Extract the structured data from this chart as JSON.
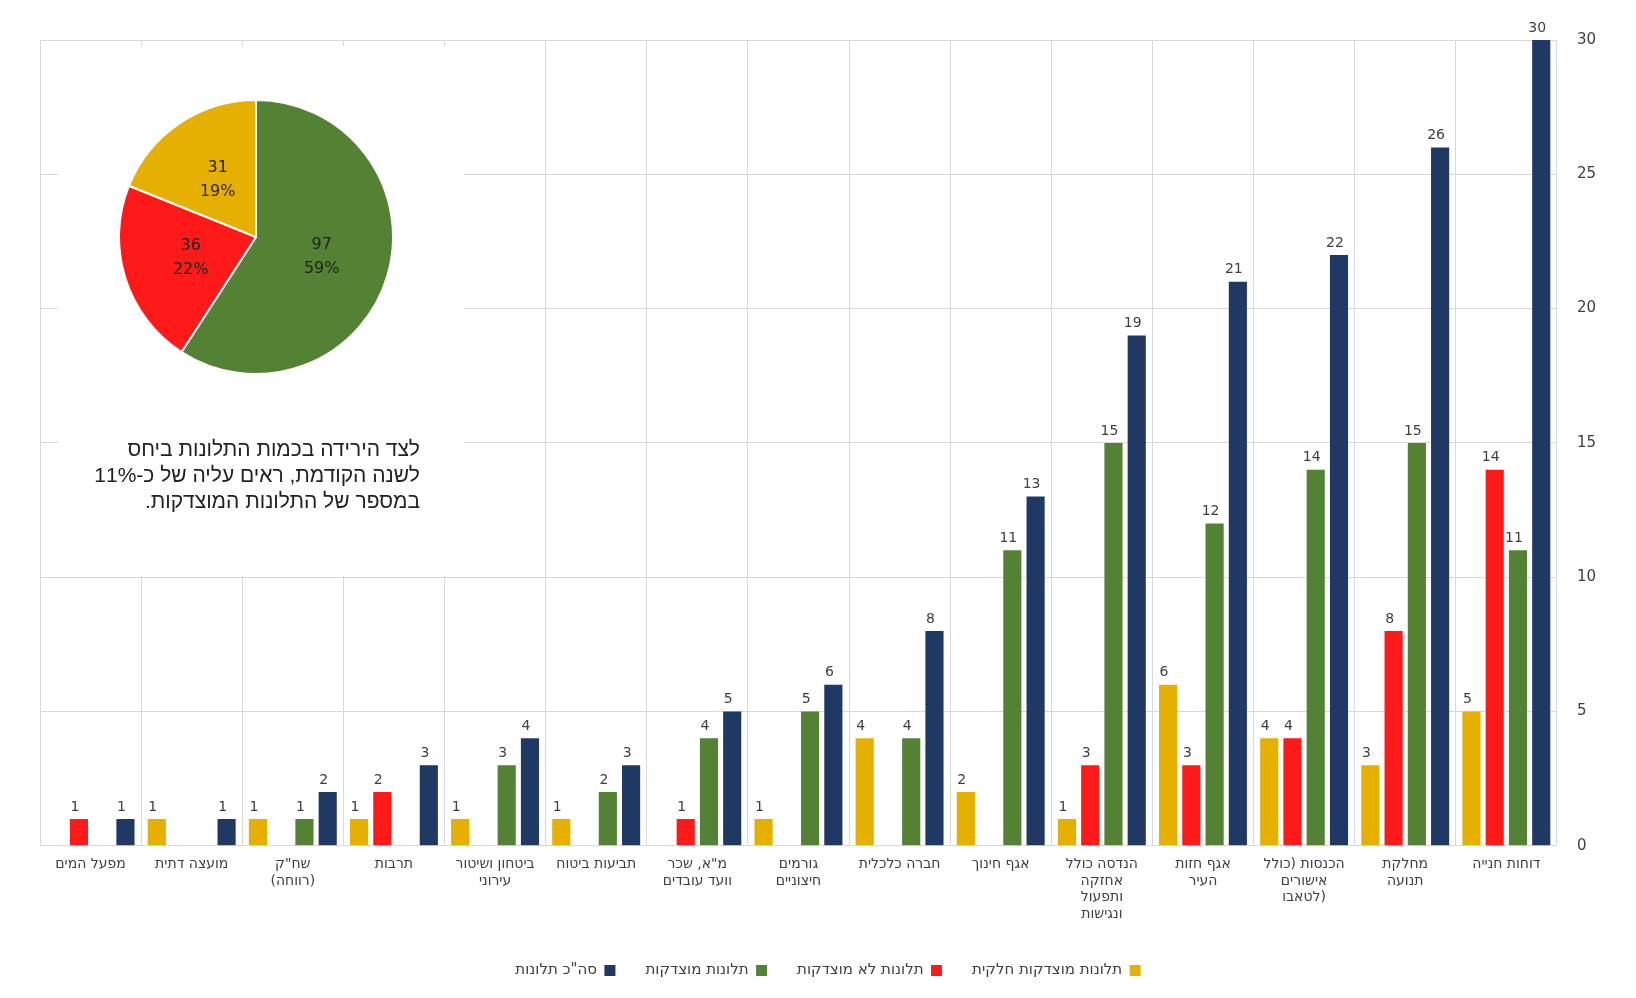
{
  "chart_data": [
    {
      "type": "bar",
      "categories": [
        "מפעל המים",
        "מועצה דתית",
        "שח\"ק (רווחה)",
        "תרבות",
        "ביטחון ושיטור עירוני",
        "תביעות ביטוח",
        "מ\"א, שכר וועד עובדים",
        "גורמים חיצוניים",
        "חברה כלכלית",
        "אגף חינוך",
        "הנדסה כולל אחזקה ותפעול ונגישות",
        "אגף חזות העיר",
        "הכנסות (כולל אישורים לטאבו)",
        "מחלקת תנועה",
        "דוחות חנייה"
      ],
      "series": [
        {
          "name": "תלונות מוצדקות חלקית",
          "color": "#e6b000",
          "values": [
            null,
            1,
            1,
            1,
            1,
            1,
            null,
            1,
            4,
            2,
            1,
            6,
            4,
            3,
            5
          ]
        },
        {
          "name": "תלונות לא מוצדקות",
          "color": "#ff1a1a",
          "values": [
            1,
            null,
            null,
            2,
            null,
            null,
            1,
            null,
            null,
            null,
            3,
            3,
            4,
            8,
            14
          ]
        },
        {
          "name": "תלונות מוצדקות",
          "color": "#548235",
          "values": [
            null,
            null,
            1,
            null,
            3,
            2,
            4,
            5,
            4,
            11,
            15,
            12,
            14,
            15,
            11
          ]
        },
        {
          "name": "סה\"כ תלונות",
          "color": "#203864",
          "values": [
            1,
            1,
            2,
            3,
            4,
            3,
            5,
            6,
            8,
            13,
            19,
            21,
            22,
            26,
            30
          ]
        }
      ],
      "ylim": [
        0,
        30
      ],
      "yticks": [
        0,
        5,
        10,
        15,
        20,
        25,
        30
      ],
      "grid": true,
      "legend": "bottom",
      "data_labels": true
    },
    {
      "type": "pie",
      "categories": [
        null,
        null,
        null
      ],
      "values": [
        97,
        36,
        31
      ],
      "colors": [
        "#548235",
        "#ff1a1a",
        "#e6b000"
      ],
      "value_labels": [
        "97\n59%",
        "36\n22%",
        "31\n19%"
      ],
      "annotations": [
        "לצד הירידה בכמות התלונות ביחס לשנה הקודמת, ראים עליה של כ-11% במספר של התלונות המוצדקות."
      ]
    }
  ]
}
